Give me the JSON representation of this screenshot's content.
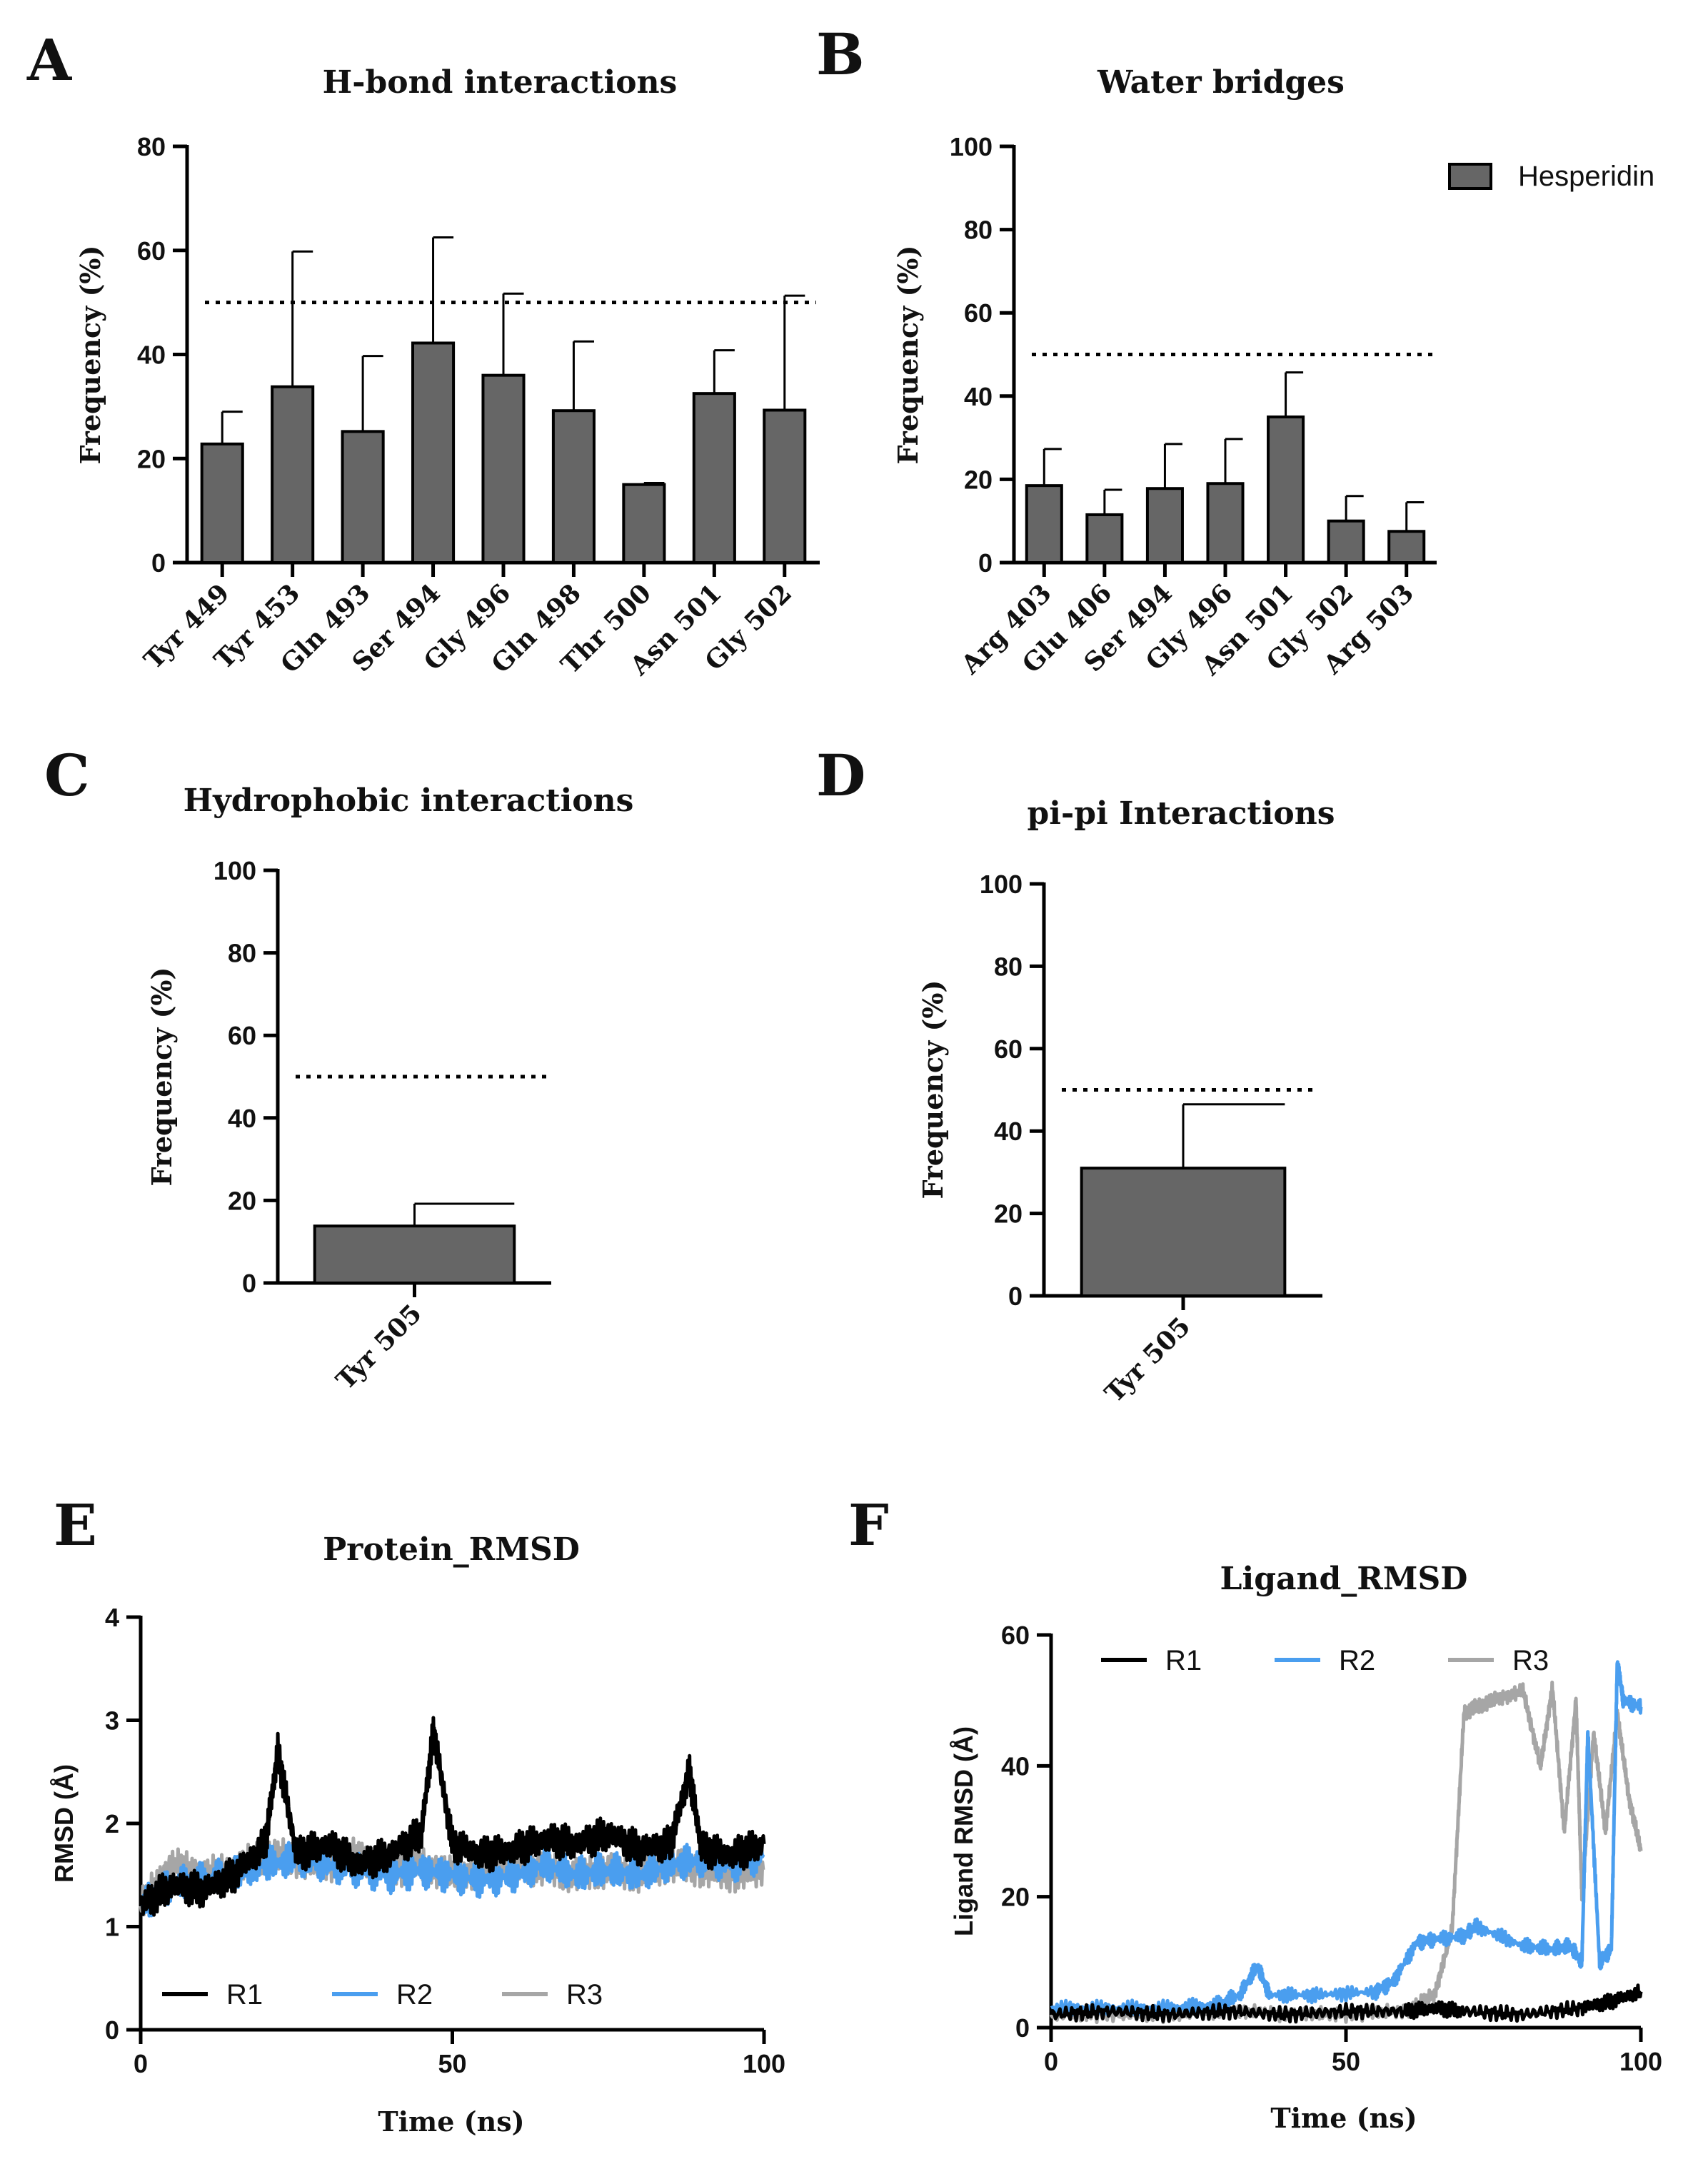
{
  "colors": {
    "bar": "#666666",
    "axis": "#000000",
    "R1": "#000000",
    "R2": "#4a9eef",
    "R3": "#a6a6a6"
  },
  "chart_data": [
    {
      "id": "A",
      "type": "bar",
      "letter": "A",
      "title": "H-bond interactions",
      "ylabel": "Frequency (%)",
      "xlabel": "",
      "ylim": [
        0,
        80
      ],
      "yticks": [
        0,
        20,
        40,
        60,
        80
      ],
      "threshold": 50,
      "categories": [
        "Tyr 449",
        "Tyr 453",
        "Gln 493",
        "Ser 494",
        "Gly 496",
        "Gln 498",
        "Thr 500",
        "Asn 501",
        "Gly 502"
      ],
      "values": [
        22.8,
        33.8,
        25.2,
        42.2,
        36.0,
        29.2,
        15.0,
        32.5,
        29.3
      ],
      "errors": [
        6.2,
        26.0,
        14.5,
        20.3,
        15.7,
        13.3,
        0.3,
        8.3,
        22.0
      ]
    },
    {
      "id": "B",
      "type": "bar",
      "letter": "B",
      "title": "Water bridges",
      "ylabel": "Frequency (%)",
      "xlabel": "",
      "ylim": [
        0,
        100
      ],
      "yticks": [
        0,
        20,
        40,
        60,
        80,
        100
      ],
      "threshold": 50,
      "categories": [
        "Arg 403",
        "Glu 406",
        "Ser 494",
        "Gly 496",
        "Asn 501",
        "Gly 502",
        "Arg 503"
      ],
      "values": [
        18.5,
        11.5,
        17.8,
        19.0,
        35.0,
        10.0,
        7.5
      ],
      "errors": [
        8.8,
        6.0,
        10.7,
        10.7,
        10.7,
        6.0,
        7.0
      ],
      "legend": [
        "Hesperidin"
      ]
    },
    {
      "id": "C",
      "type": "bar",
      "letter": "C",
      "title": "Hydrophobic interactions",
      "ylabel": "Frequency (%)",
      "xlabel": "",
      "ylim": [
        0,
        100
      ],
      "yticks": [
        0,
        20,
        40,
        60,
        80,
        100
      ],
      "threshold": 50,
      "categories": [
        "Tyr 505"
      ],
      "values": [
        13.8
      ],
      "errors": [
        5.4
      ]
    },
    {
      "id": "D",
      "type": "bar",
      "letter": "D",
      "title": "pi-pi Interactions",
      "ylabel": "Frequency (%)",
      "xlabel": "",
      "ylim": [
        0,
        100
      ],
      "yticks": [
        0,
        20,
        40,
        60,
        80,
        100
      ],
      "threshold": 50,
      "categories": [
        "Tyr 505"
      ],
      "values": [
        31.0
      ],
      "errors": [
        15.5
      ]
    },
    {
      "id": "E",
      "type": "line",
      "letter": "E",
      "title": "Protein_RMSD",
      "ylabel": "RMSD (Å)",
      "xlabel": "Time (ns)",
      "xlim": [
        0,
        100
      ],
      "ylim": [
        0,
        4
      ],
      "xticks": [
        0,
        50,
        100
      ],
      "yticks": [
        0,
        1,
        2,
        3,
        4
      ],
      "legend_position": "bottom-left",
      "series": [
        {
          "name": "R1",
          "x": [
            0,
            5,
            10,
            15,
            20,
            22,
            25,
            30,
            35,
            40,
            45,
            47,
            50,
            55,
            60,
            65,
            70,
            75,
            80,
            85,
            88,
            90,
            95,
            100
          ],
          "y": [
            1.2,
            1.4,
            1.35,
            1.5,
            1.8,
            2.7,
            1.7,
            1.8,
            1.6,
            1.7,
            1.9,
            2.9,
            1.8,
            1.7,
            1.75,
            1.85,
            1.8,
            1.9,
            1.75,
            1.8,
            2.5,
            1.75,
            1.7,
            1.8
          ]
        },
        {
          "name": "R2",
          "x": [
            0,
            5,
            10,
            15,
            20,
            25,
            30,
            35,
            40,
            45,
            50,
            55,
            60,
            65,
            70,
            75,
            80,
            85,
            90,
            95,
            100
          ],
          "y": [
            1.2,
            1.4,
            1.45,
            1.5,
            1.6,
            1.65,
            1.6,
            1.55,
            1.5,
            1.55,
            1.5,
            1.45,
            1.5,
            1.6,
            1.5,
            1.55,
            1.5,
            1.6,
            1.65,
            1.6,
            1.7
          ]
        },
        {
          "name": "R3",
          "x": [
            0,
            5,
            10,
            15,
            20,
            25,
            30,
            35,
            40,
            45,
            50,
            55,
            60,
            65,
            70,
            75,
            80,
            85,
            90,
            95,
            100
          ],
          "y": [
            1.2,
            1.6,
            1.5,
            1.55,
            1.7,
            1.65,
            1.6,
            1.7,
            1.55,
            1.6,
            1.5,
            1.55,
            1.6,
            1.55,
            1.5,
            1.55,
            1.5,
            1.6,
            1.55,
            1.5,
            1.55
          ]
        }
      ]
    },
    {
      "id": "F",
      "type": "line",
      "letter": "F",
      "title": "Ligand_RMSD",
      "ylabel": "Ligand RMSD (Å)",
      "xlabel": "Time (ns)",
      "xlim": [
        0,
        100
      ],
      "ylim": [
        0,
        60
      ],
      "xticks": [
        0,
        50,
        100
      ],
      "yticks": [
        0,
        20,
        40,
        60
      ],
      "legend_position": "top-left",
      "series": [
        {
          "name": "R1",
          "x": [
            0,
            10,
            20,
            30,
            40,
            50,
            60,
            65,
            70,
            80,
            90,
            95,
            100
          ],
          "y": [
            2.0,
            2.5,
            2.0,
            2.5,
            2.0,
            2.5,
            2.5,
            3.0,
            2.5,
            2.0,
            3.0,
            4.0,
            5.5
          ]
        },
        {
          "name": "R2",
          "x": [
            0,
            10,
            20,
            28,
            32,
            35,
            37,
            45,
            55,
            58,
            62,
            65,
            70,
            72,
            80,
            85,
            88,
            90,
            91,
            93,
            95,
            96,
            97,
            100
          ],
          "y": [
            3.0,
            3.0,
            3.0,
            3.5,
            5.0,
            9.5,
            5.0,
            5.0,
            5.5,
            7.0,
            13.0,
            13.5,
            14.0,
            15.5,
            12.5,
            12.0,
            12.5,
            10.0,
            45.0,
            10.0,
            12.0,
            56.0,
            50.0,
            49.0
          ]
        },
        {
          "name": "R3",
          "x": [
            0,
            10,
            20,
            30,
            40,
            50,
            60,
            65,
            68,
            70,
            72,
            75,
            80,
            83,
            85,
            87,
            89,
            90,
            92,
            94,
            96,
            98,
            100
          ],
          "y": [
            2.0,
            2.0,
            2.0,
            2.5,
            2.0,
            2.0,
            2.5,
            5.0,
            15.0,
            48.0,
            49.0,
            50.0,
            51.5,
            40.0,
            52.0,
            30.0,
            50.0,
            20.0,
            45.0,
            30.0,
            48.0,
            35.0,
            27.0
          ]
        }
      ]
    }
  ]
}
